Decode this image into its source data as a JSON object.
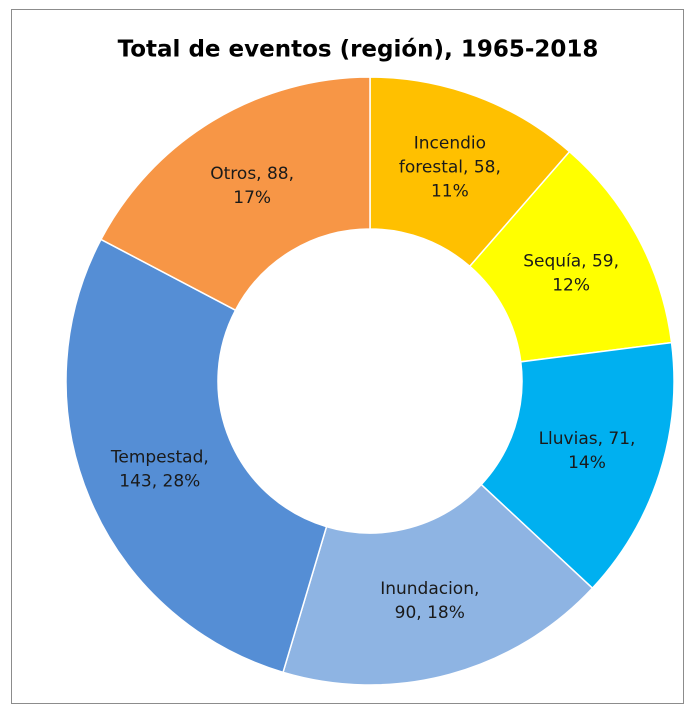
{
  "chart_data": {
    "type": "donut",
    "title": "Total de eventos (región), 1965-2018",
    "categories": [
      "Incendio forestal",
      "Sequía",
      "Lluvias",
      "Inundacion",
      "Tempestad",
      "Otros"
    ],
    "values": [
      58,
      59,
      71,
      90,
      143,
      88
    ],
    "value_labels": [
      [
        "Incendio",
        "forestal, 58,",
        "11%"
      ],
      [
        "Sequía, 59,",
        "12%"
      ],
      [
        "Lluvias, 71,",
        "14%"
      ],
      [
        "Inundacion,",
        "90, 18%"
      ],
      [
        "Tempestad,",
        "143, 28%"
      ],
      [
        "Otros, 88,",
        "17%"
      ]
    ],
    "colors": [
      "#ffc000",
      "#ffff00",
      "#00b0f0",
      "#8eb4e3",
      "#558ed5",
      "#f79646"
    ]
  }
}
